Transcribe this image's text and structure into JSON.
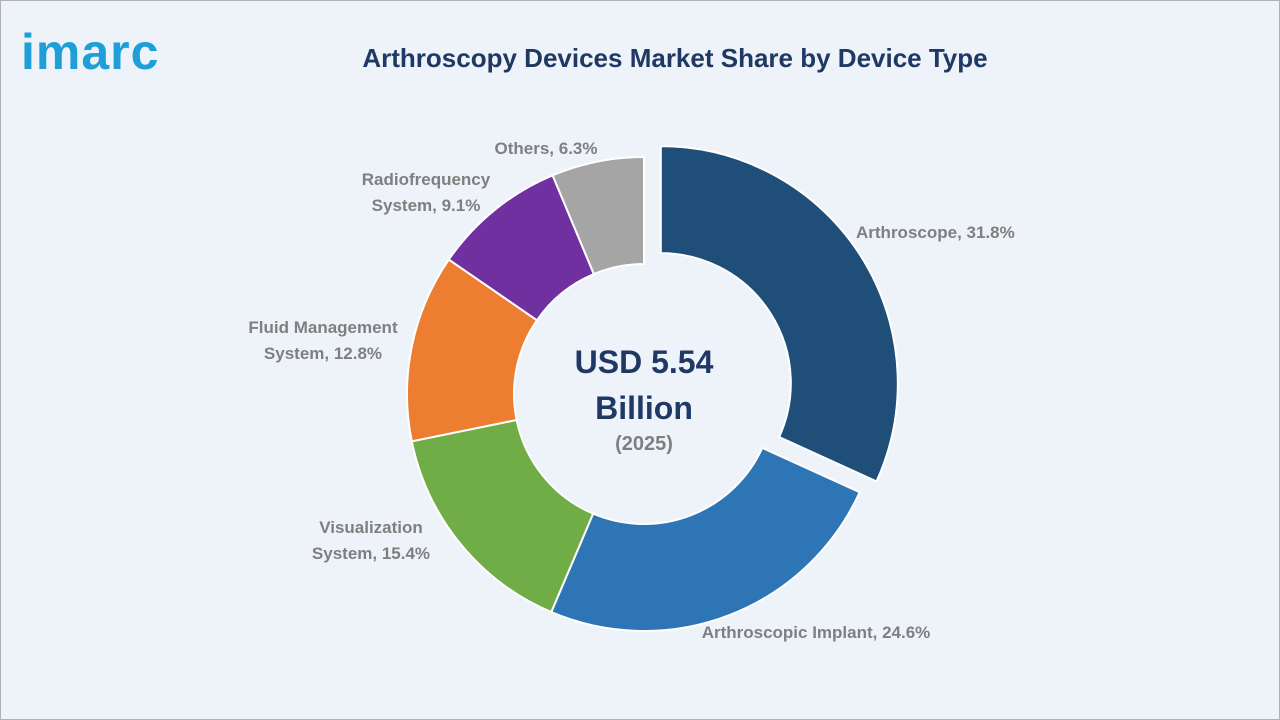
{
  "logo": "imarc",
  "chart_data": {
    "type": "donut",
    "title": "Arthroscopy Devices Market Share by Device Type",
    "values": [
      31.8,
      24.6,
      15.4,
      12.8,
      9.1,
      6.3
    ],
    "value_labels": [
      "Arthroscope, 31.8%",
      "Arthroscopic Implant, 24.6%",
      "Visualization System, 15.4%",
      "Fluid Management System, 12.8%",
      "Radiofrequency System, 9.1%",
      "Others, 6.3%"
    ],
    "colors": [
      "#1f4e79",
      "#2e75b6",
      "#70ad47",
      "#ed7d31",
      "#7030a0",
      "#a5a5a5"
    ],
    "center_label": "USD 5.54 Billion",
    "center_sublabel": "(2025)"
  }
}
